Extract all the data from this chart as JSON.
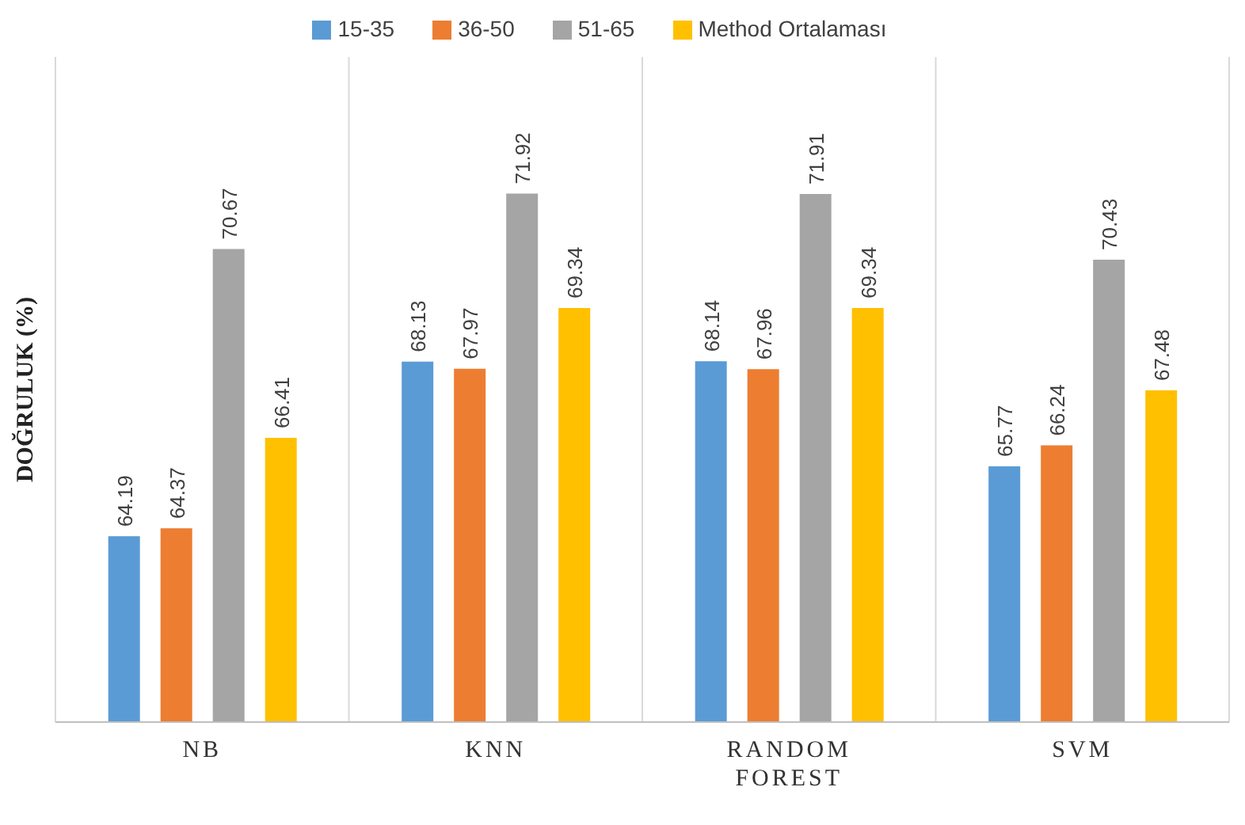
{
  "chart_data": {
    "type": "bar",
    "ylabel": "DOĞRULUK   (%)",
    "categories": [
      "NB",
      "KNN",
      "RANDOM FOREST",
      "SVM"
    ],
    "series": [
      {
        "name": "15-35",
        "color": "#5b9bd5",
        "values": [
          64.19,
          68.13,
          68.14,
          65.77
        ]
      },
      {
        "name": "36-50",
        "color": "#ed7d31",
        "values": [
          64.37,
          67.97,
          67.96,
          66.24
        ]
      },
      {
        "name": "51-65",
        "color": "#a5a5a5",
        "values": [
          70.67,
          71.92,
          71.91,
          70.43
        ]
      },
      {
        "name": "Method Ortalaması",
        "color": "#ffc000",
        "values": [
          66.41,
          69.34,
          69.34,
          67.48
        ]
      }
    ],
    "ylim": [
      60,
      75
    ],
    "tick_labels": "x",
    "data_labels": true,
    "grid": "x",
    "legend": "top"
  }
}
